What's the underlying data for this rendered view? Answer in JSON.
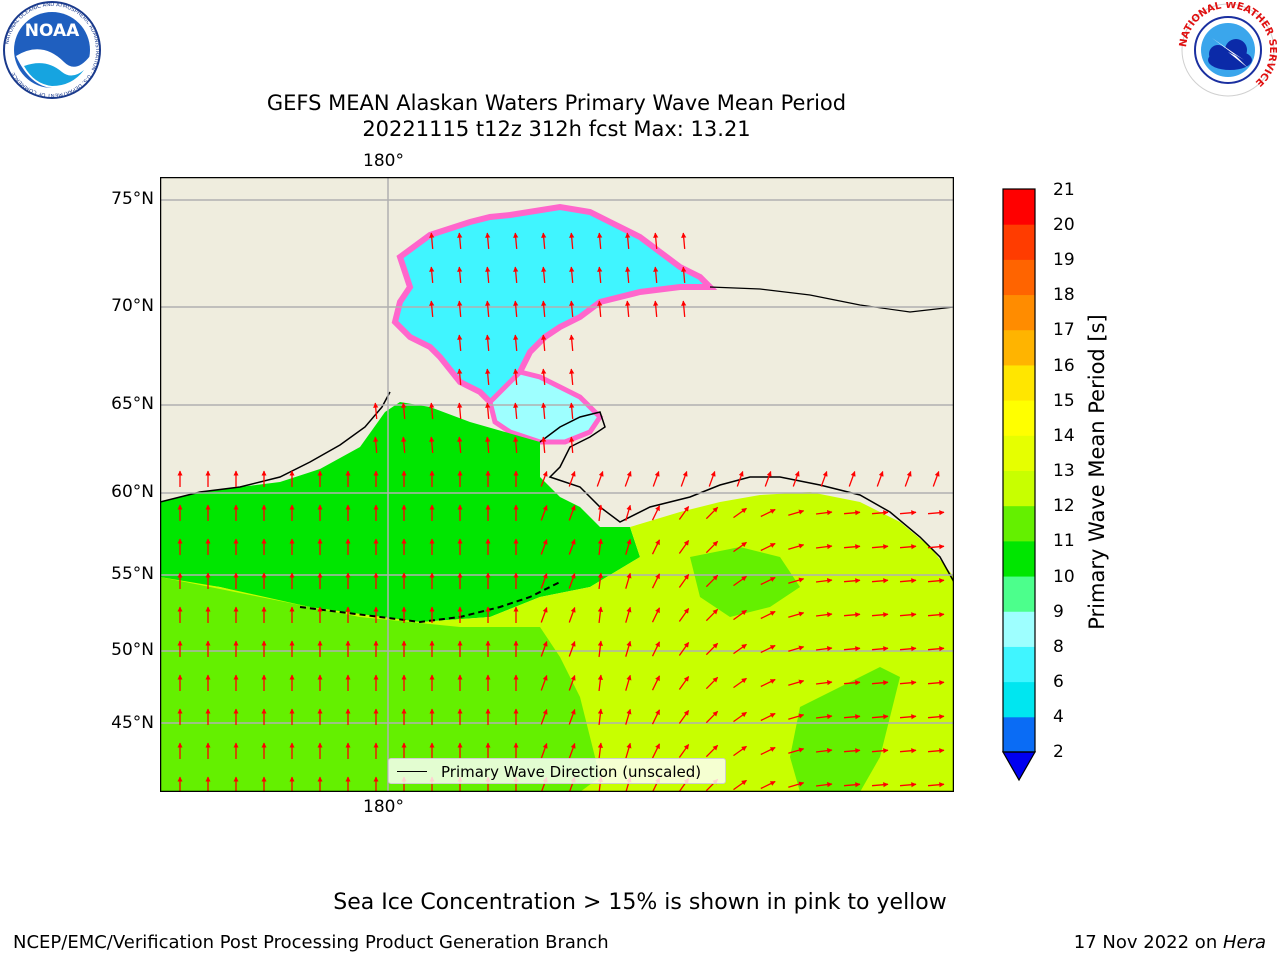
{
  "header": {
    "title_line1": "GEFS MEAN Alaskan Waters Primary Wave Mean Period",
    "title_line2": "20221115 t12z 312h fcst   Max: 13.21"
  },
  "logos": {
    "left": {
      "text": "NOAA",
      "ring_text": "NATIONAL OCEANIC AND ATMOSPHERIC ADMINISTRATION · U.S. DEPARTMENT OF COMMERCE"
    },
    "right": {
      "ring_text": "NATIONAL WEATHER SERVICE"
    }
  },
  "map": {
    "lat_labels": [
      "75°N",
      "70°N",
      "65°N",
      "60°N",
      "55°N",
      "50°N",
      "45°N"
    ],
    "lon_label_top": "180°",
    "lon_label_bottom": "180°",
    "legend_label": "Primary Wave Direction (unscaled)"
  },
  "colorbar": {
    "label": "Primary Wave Mean Period [s]",
    "ticks": [
      "21",
      "20",
      "19",
      "18",
      "17",
      "16",
      "15",
      "14",
      "13",
      "12",
      "11",
      "10",
      "9",
      "8",
      "6",
      "4",
      "2"
    ],
    "colors_bottom_to_top": [
      "#0a6cf5",
      "#00e6f0",
      "#40f5ff",
      "#9effff",
      "#4cff8c",
      "#00e600",
      "#64f000",
      "#c8ff00",
      "#e6ff00",
      "#ffff00",
      "#ffe600",
      "#ffb400",
      "#ff8c00",
      "#ff6400",
      "#ff3c00",
      "#ff0000"
    ],
    "extend_color": "#0000f0"
  },
  "colors": {
    "land": "#efedde",
    "ice_low": "#ff66cc",
    "ice_high": "#ffe600",
    "arrow": "#ff0000"
  },
  "notes": {
    "sea_ice": "Sea Ice Concentration > 15% is shown in pink to yellow"
  },
  "footer": {
    "left": "NCEP/EMC/Verification Post Processing Product Generation Branch",
    "right_prefix": "17 Nov 2022 on ",
    "right_italic": "Hera"
  }
}
